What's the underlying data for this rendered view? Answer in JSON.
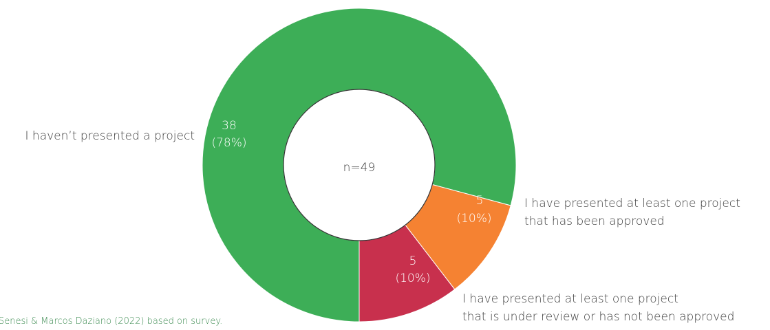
{
  "chart_data": {
    "type": "donut",
    "categories": [
      [
        "I haven’t presented a project"
      ],
      [
        "I have presented at least one project",
        "that has been approved"
      ],
      [
        "I have presented at least one project",
        "that is under review or has not been approved"
      ]
    ],
    "values": [
      38,
      5,
      5
    ],
    "percent_labels": [
      "(78%)",
      "(10%)",
      "(10%)"
    ],
    "colors": [
      "#3dae57",
      "#f58232",
      "#c8304d"
    ],
    "center_label": "n=49",
    "source": "Senesi & Marcos Daziano (2022) based on survey."
  }
}
